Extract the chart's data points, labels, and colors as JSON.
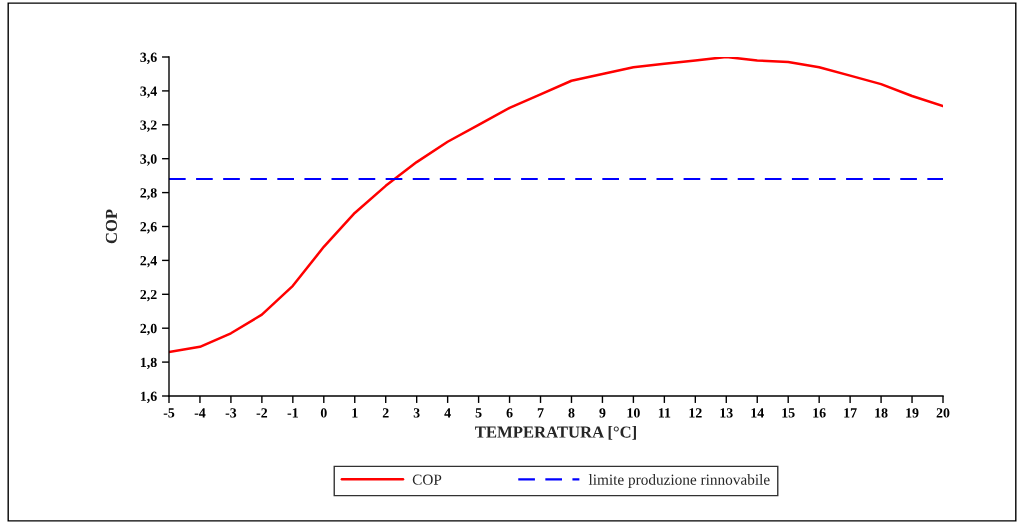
{
  "chart_data": {
    "type": "line",
    "xlabel": "TEMPERATURA [°C]",
    "ylabel": "COP",
    "x": [
      -5,
      -4,
      -3,
      -2,
      -1,
      0,
      1,
      2,
      3,
      4,
      5,
      6,
      7,
      8,
      9,
      10,
      11,
      12,
      13,
      14,
      15,
      16,
      17,
      18,
      19,
      20
    ],
    "series": [
      {
        "name": "COP",
        "color": "#ff0000",
        "values": [
          1.86,
          1.89,
          1.97,
          2.08,
          2.25,
          2.48,
          2.68,
          2.84,
          2.98,
          3.1,
          3.2,
          3.3,
          3.38,
          3.46,
          3.5,
          3.54,
          3.56,
          3.58,
          3.6,
          3.58,
          3.57,
          3.54,
          3.49,
          3.44,
          3.37,
          3.31
        ]
      }
    ],
    "ref_lines": [
      {
        "axis": "y",
        "value": 2.88,
        "label": "limite produzione rinnovabile",
        "color": "#0000ff",
        "line_style": "dashed"
      }
    ],
    "xlim": [
      -5,
      20
    ],
    "xticks": [
      -5,
      -4,
      -3,
      -2,
      -1,
      0,
      1,
      2,
      3,
      4,
      5,
      6,
      7,
      8,
      9,
      10,
      11,
      12,
      13,
      14,
      15,
      16,
      17,
      18,
      19,
      20
    ],
    "ylim": [
      1.6,
      3.6
    ],
    "yticks": [
      {
        "value": 1.6,
        "label": "1,6"
      },
      {
        "value": 1.8,
        "label": "1,8"
      },
      {
        "value": 2.0,
        "label": "2,0"
      },
      {
        "value": 2.2,
        "label": "2,2"
      },
      {
        "value": 2.4,
        "label": "2,4"
      },
      {
        "value": 2.6,
        "label": "2,6"
      },
      {
        "value": 2.8,
        "label": "2,8"
      },
      {
        "value": 3.0,
        "label": "3,0"
      },
      {
        "value": 3.2,
        "label": "3,2"
      },
      {
        "value": 3.4,
        "label": "3,4"
      },
      {
        "value": 3.6,
        "label": "3,6"
      }
    ],
    "grid": false,
    "legend": "bottom",
    "marker": "none",
    "line_style": "solid"
  }
}
